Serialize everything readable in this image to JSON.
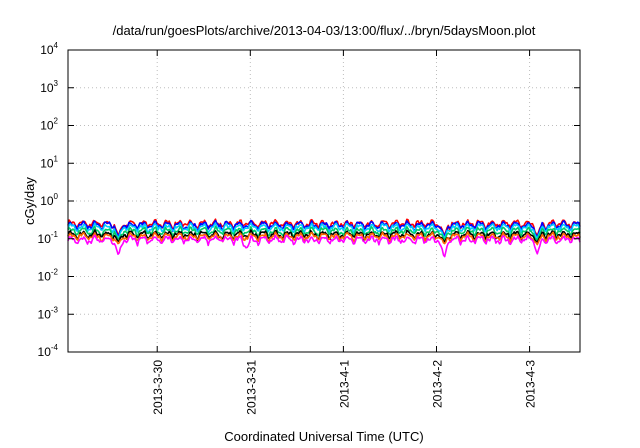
{
  "chart_data": {
    "type": "line",
    "title": "/data/run/goesPlots/archive/2013-04-03/13:00/flux/../bryn/5daysMoon.plot",
    "xlabel": "Coordinated Universal Time (UTC)",
    "ylabel": "cGy/day",
    "yscale": "log",
    "ylim": [
      0.0001,
      10000
    ],
    "xlim": [
      "2013-03-29 01:00",
      "2013-04-03 13:00"
    ],
    "grid": true,
    "legend": "none",
    "x_ticks": [
      {
        "label": "2013-3-30",
        "x": "2013-03-30 00:00"
      },
      {
        "label": "2013-3-31",
        "x": "2013-03-31 00:00"
      },
      {
        "label": "2013-4-1",
        "x": "2013-04-01 00:00"
      },
      {
        "label": "2013-4-2",
        "x": "2013-04-02 00:00"
      },
      {
        "label": "2013-4-3",
        "x": "2013-04-03 00:00"
      }
    ],
    "y_ticks": [
      {
        "base": "10",
        "exp": "-4",
        "value": 0.0001
      },
      {
        "base": "10",
        "exp": "-3",
        "value": 0.001
      },
      {
        "base": "10",
        "exp": "-2",
        "value": 0.01
      },
      {
        "base": "10",
        "exp": "-1",
        "value": 0.1
      },
      {
        "base": "10",
        "exp": "0",
        "value": 1
      },
      {
        "base": "10",
        "exp": "1",
        "value": 10
      },
      {
        "base": "10",
        "exp": "2",
        "value": 100
      },
      {
        "base": "10",
        "exp": "3",
        "value": 1000
      },
      {
        "base": "10",
        "exp": "4",
        "value": 10000
      }
    ],
    "series": [
      {
        "color": "#ff0000",
        "baseline": 0.25,
        "dips": [
          [
            "2013-03-29 14:00",
            0.12
          ],
          [
            "2013-04-02 02:00",
            0.12
          ],
          [
            "2013-04-03 02:00",
            0.12
          ]
        ]
      },
      {
        "color": "#0000ff",
        "baseline": 0.23,
        "dips": [
          [
            "2013-03-29 14:00",
            0.11
          ],
          [
            "2013-04-02 02:00",
            0.11
          ],
          [
            "2013-04-03 02:00",
            0.11
          ]
        ]
      },
      {
        "color": "#00ccff",
        "baseline": 0.2,
        "dips": [
          [
            "2013-03-29 14:00",
            0.1
          ],
          [
            "2013-04-02 02:00",
            0.1
          ],
          [
            "2013-04-03 02:00",
            0.1
          ]
        ]
      },
      {
        "color": "#00cc66",
        "baseline": 0.16,
        "dips": [
          [
            "2013-03-29 14:00",
            0.09
          ],
          [
            "2013-04-02 02:00",
            0.09
          ],
          [
            "2013-04-03 02:00",
            0.09
          ]
        ]
      },
      {
        "color": "#000000",
        "baseline": 0.13,
        "dips": [
          [
            "2013-03-29 14:00",
            0.08
          ],
          [
            "2013-04-02 02:00",
            0.08
          ],
          [
            "2013-04-03 02:00",
            0.08
          ]
        ]
      },
      {
        "color": "#ff6600",
        "baseline": 0.115,
        "dips": [
          [
            "2013-03-29 14:00",
            0.07
          ],
          [
            "2013-04-02 02:00",
            0.07
          ],
          [
            "2013-04-03 02:00",
            0.07
          ]
        ]
      },
      {
        "color": "#ff00ff",
        "baseline": 0.095,
        "dips": [
          [
            "2013-03-29 14:00",
            0.035
          ],
          [
            "2013-03-30 23:00",
            0.055
          ],
          [
            "2013-04-02 02:00",
            0.03
          ],
          [
            "2013-04-03 02:00",
            0.04
          ]
        ]
      }
    ]
  }
}
